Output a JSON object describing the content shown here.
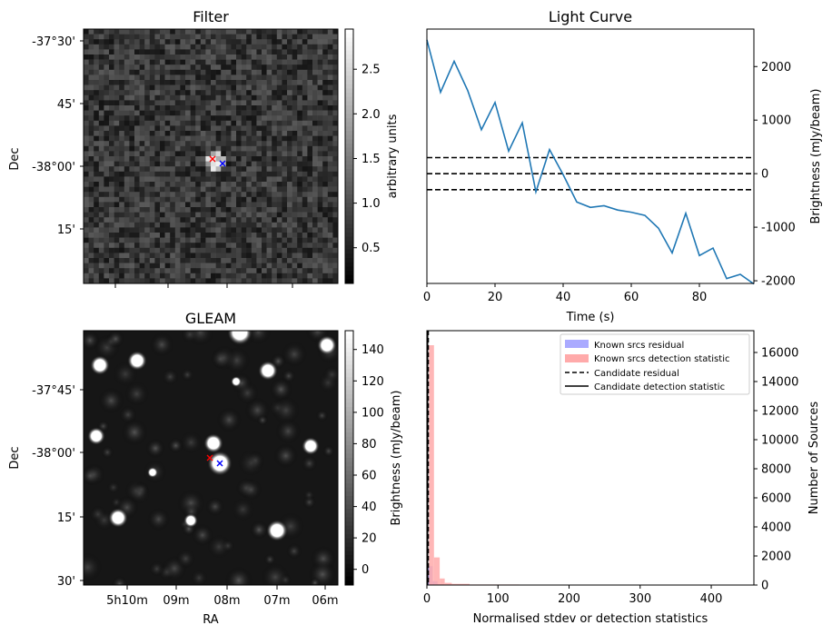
{
  "colors": {
    "line": "#1f77b4",
    "red": "#ff0000",
    "blue": "#0000ff",
    "hist_blue": "#aaaaff",
    "hist_red": "#ffaaaa",
    "hist_purple": "#aa77cc"
  },
  "chart_data": [
    {
      "type": "heatmap",
      "title": "Filter",
      "ylabel": "Dec",
      "ytick_labels": [
        "-37°30'",
        "45'",
        "-38°00'",
        "15'"
      ],
      "colorbar_label": "arbitrary units",
      "colorbar_ticks": [
        "0.5",
        "1.0",
        "1.5",
        "2.0",
        "2.5"
      ],
      "colorbar_range": [
        0.1,
        2.95
      ],
      "markers": [
        {
          "name": "red-cross",
          "symbol": "×"
        },
        {
          "name": "blue-cross",
          "symbol": "×"
        }
      ]
    },
    {
      "type": "line",
      "title": "Light Curve",
      "xlabel": "Time (s)",
      "ylabel": "Brightness (mJy/beam)",
      "xlim": [
        0,
        96
      ],
      "ylim": [
        -2050,
        2700
      ],
      "xticks": [
        "0",
        "20",
        "40",
        "60",
        "80"
      ],
      "yticks": [
        "2000",
        "1000",
        "0",
        "-1000",
        "-2000"
      ],
      "x": [
        0,
        4,
        8,
        12,
        16,
        20,
        24,
        28,
        32,
        36,
        40,
        44,
        48,
        52,
        56,
        60,
        64,
        68,
        72,
        76,
        80,
        84,
        88,
        92,
        96
      ],
      "y": [
        2500,
        1520,
        2100,
        1550,
        820,
        1330,
        420,
        950,
        -340,
        450,
        -20,
        -530,
        -630,
        -600,
        -680,
        -720,
        -780,
        -1020,
        -1480,
        -740,
        -1530,
        -1390,
        -1960,
        -1880,
        -2060
      ],
      "hlines": [
        300,
        0,
        -300
      ]
    },
    {
      "type": "heatmap",
      "title": "GLEAM",
      "xlabel": "RA",
      "ylabel": "Dec",
      "xtick_labels": [
        "5h10m",
        "09m",
        "08m",
        "07m",
        "06m"
      ],
      "ytick_labels": [
        "-37°45'",
        "-38°00'",
        "15'",
        "30'"
      ],
      "colorbar_label": "Brightness (mJy/beam)",
      "colorbar_ticks": [
        "0",
        "20",
        "40",
        "60",
        "80",
        "100",
        "120",
        "140"
      ],
      "colorbar_range": [
        -10,
        152
      ]
    },
    {
      "type": "bar",
      "xlabel": "Normalised stdev or detection statistics",
      "ylabel": "Number of Sources",
      "xlim": [
        0,
        460
      ],
      "ylim": [
        0,
        17500
      ],
      "xticks": [
        "0",
        "100",
        "200",
        "300",
        "400"
      ],
      "yticks": [
        "0",
        "2000",
        "4000",
        "6000",
        "8000",
        "10000",
        "12000",
        "14000",
        "16000"
      ],
      "series": [
        {
          "name": "Known srcs residual",
          "bins": [
            [
              1,
              8,
              1300
            ],
            [
              8,
              15,
              260
            ],
            [
              15,
              25,
              40
            ]
          ]
        },
        {
          "name": "Known srcs detection statistic",
          "bins": [
            [
              3,
              10,
              16500
            ],
            [
              10,
              18,
              1900
            ],
            [
              18,
              25,
              450
            ],
            [
              25,
              35,
              150
            ],
            [
              35,
              60,
              80
            ],
            [
              60,
              130,
              40
            ],
            [
              265,
              275,
              25
            ],
            [
              430,
              440,
              20
            ]
          ]
        }
      ],
      "legend": [
        "Known srcs residual",
        "Known srcs detection statistic",
        "Candidate residual",
        "Candidate detection statistic"
      ],
      "candidate_residual": 2,
      "candidate_detection": 1
    }
  ]
}
